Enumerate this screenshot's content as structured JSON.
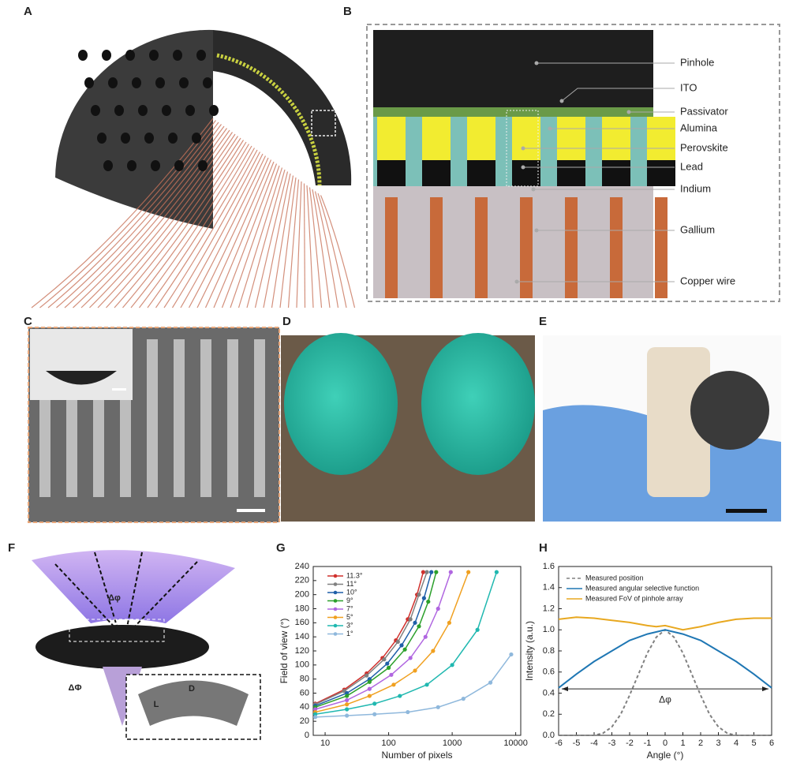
{
  "panel_letters": [
    "A",
    "B",
    "C",
    "D",
    "E",
    "F",
    "G",
    "H"
  ],
  "panel_b": {
    "labels": [
      "Pinhole",
      "ITO",
      "Passivator",
      "Alumina",
      "Perovskite",
      "Lead",
      "Indium",
      "Gallium",
      "Copper wire"
    ]
  },
  "panel_f": {
    "labels": [
      "Δφ",
      "ΔΦ",
      "L",
      "D"
    ]
  },
  "chart_data": [
    {
      "type": "line",
      "xlabel": "Number of pixels",
      "ylabel": "Field of view (°)",
      "xscale": "log",
      "xlim": [
        6.5,
        12000
      ],
      "xticks": [
        10,
        100,
        1000,
        10000
      ],
      "ylim": [
        0,
        240
      ],
      "yticks": [
        0,
        20,
        40,
        60,
        80,
        100,
        120,
        140,
        160,
        180,
        200,
        220,
        240
      ],
      "legend": "upper left",
      "series": [
        {
          "name": "11.3°",
          "color": "#d0312d",
          "x": [
            7,
            20,
            45,
            80,
            130,
            200,
            280,
            350
          ],
          "values": [
            45,
            65,
            88,
            110,
            135,
            165,
            200,
            232
          ]
        },
        {
          "name": "11°",
          "color": "#808080",
          "x": [
            7,
            20,
            45,
            85,
            140,
            220,
            300,
            400
          ],
          "values": [
            44,
            63,
            85,
            108,
            133,
            165,
            200,
            232
          ]
        },
        {
          "name": "10°",
          "color": "#1f5fa8",
          "x": [
            7,
            22,
            50,
            95,
            160,
            260,
            360,
            470
          ],
          "values": [
            42,
            60,
            80,
            102,
            128,
            160,
            195,
            232
          ]
        },
        {
          "name": "9°",
          "color": "#2ca02c",
          "x": [
            7,
            22,
            50,
            100,
            180,
            300,
            420,
            560
          ],
          "values": [
            40,
            56,
            76,
            96,
            122,
            155,
            190,
            232
          ]
        },
        {
          "name": "7°",
          "color": "#b066e0",
          "x": [
            7,
            22,
            50,
            110,
            220,
            380,
            600,
            950
          ],
          "values": [
            37,
            50,
            66,
            86,
            110,
            140,
            180,
            232
          ]
        },
        {
          "name": "5°",
          "color": "#f0a020",
          "x": [
            7,
            22,
            50,
            120,
            260,
            500,
            900,
            1800
          ],
          "values": [
            33,
            44,
            56,
            72,
            92,
            120,
            160,
            232
          ]
        },
        {
          "name": "3°",
          "color": "#20b8b0",
          "x": [
            7,
            22,
            60,
            150,
            400,
            1000,
            2500,
            5000
          ],
          "values": [
            30,
            37,
            45,
            56,
            72,
            100,
            150,
            232
          ]
        },
        {
          "name": "1°",
          "color": "#8fb8dc",
          "x": [
            7,
            22,
            60,
            200,
            600,
            1500,
            4000,
            8500
          ],
          "values": [
            26,
            28,
            30,
            33,
            40,
            52,
            75,
            115
          ]
        }
      ]
    },
    {
      "type": "line",
      "xlabel": "Angle (°)",
      "ylabel": "Intensity (a.u.)",
      "xlim": [
        -6,
        6
      ],
      "xticks": [
        -6,
        -5,
        -4,
        -3,
        -2,
        -1,
        0,
        1,
        2,
        3,
        4,
        5,
        6
      ],
      "ylim": [
        0,
        1.6
      ],
      "yticks": [
        {
          "value": 0,
          "label": "0.0"
        },
        0.2,
        0.4,
        0.6,
        0.8,
        {
          "value": 1,
          "label": "1.0"
        },
        1.2,
        1.4,
        1.6
      ],
      "legend": "upper left",
      "annotations": [
        "Δφ"
      ],
      "series": [
        {
          "name": "Measured position",
          "color": "#808080",
          "dashed": true,
          "x": [
            -6,
            -4.5,
            -4,
            -3.5,
            -3,
            -2.5,
            -2,
            -1.5,
            -1,
            -0.5,
            0,
            0.5,
            1,
            1.5,
            2,
            2.5,
            3,
            3.5,
            4,
            4.5,
            6
          ],
          "values": [
            0,
            0,
            0,
            0.02,
            0.08,
            0.2,
            0.38,
            0.58,
            0.78,
            0.93,
            1.0,
            0.93,
            0.78,
            0.58,
            0.38,
            0.2,
            0.08,
            0.02,
            0,
            0,
            0
          ]
        },
        {
          "name": "Measured angular selective function",
          "color": "#1f77b4",
          "x": [
            -6,
            -5,
            -4,
            -3,
            -2,
            -1,
            0,
            1,
            2,
            3,
            4,
            5,
            6
          ],
          "values": [
            0.45,
            0.58,
            0.7,
            0.8,
            0.9,
            0.96,
            1.0,
            0.96,
            0.9,
            0.8,
            0.7,
            0.58,
            0.45
          ]
        },
        {
          "name": "Measured FoV of pinhole array",
          "color": "#e8a820",
          "x": [
            -6,
            -5,
            -4,
            -3,
            -2,
            -1,
            -0.5,
            0,
            0.5,
            1,
            2,
            3,
            4,
            5,
            6
          ],
          "values": [
            1.1,
            1.12,
            1.11,
            1.09,
            1.07,
            1.04,
            1.03,
            1.04,
            1.02,
            1.0,
            1.03,
            1.07,
            1.1,
            1.11,
            1.11
          ]
        }
      ]
    }
  ]
}
